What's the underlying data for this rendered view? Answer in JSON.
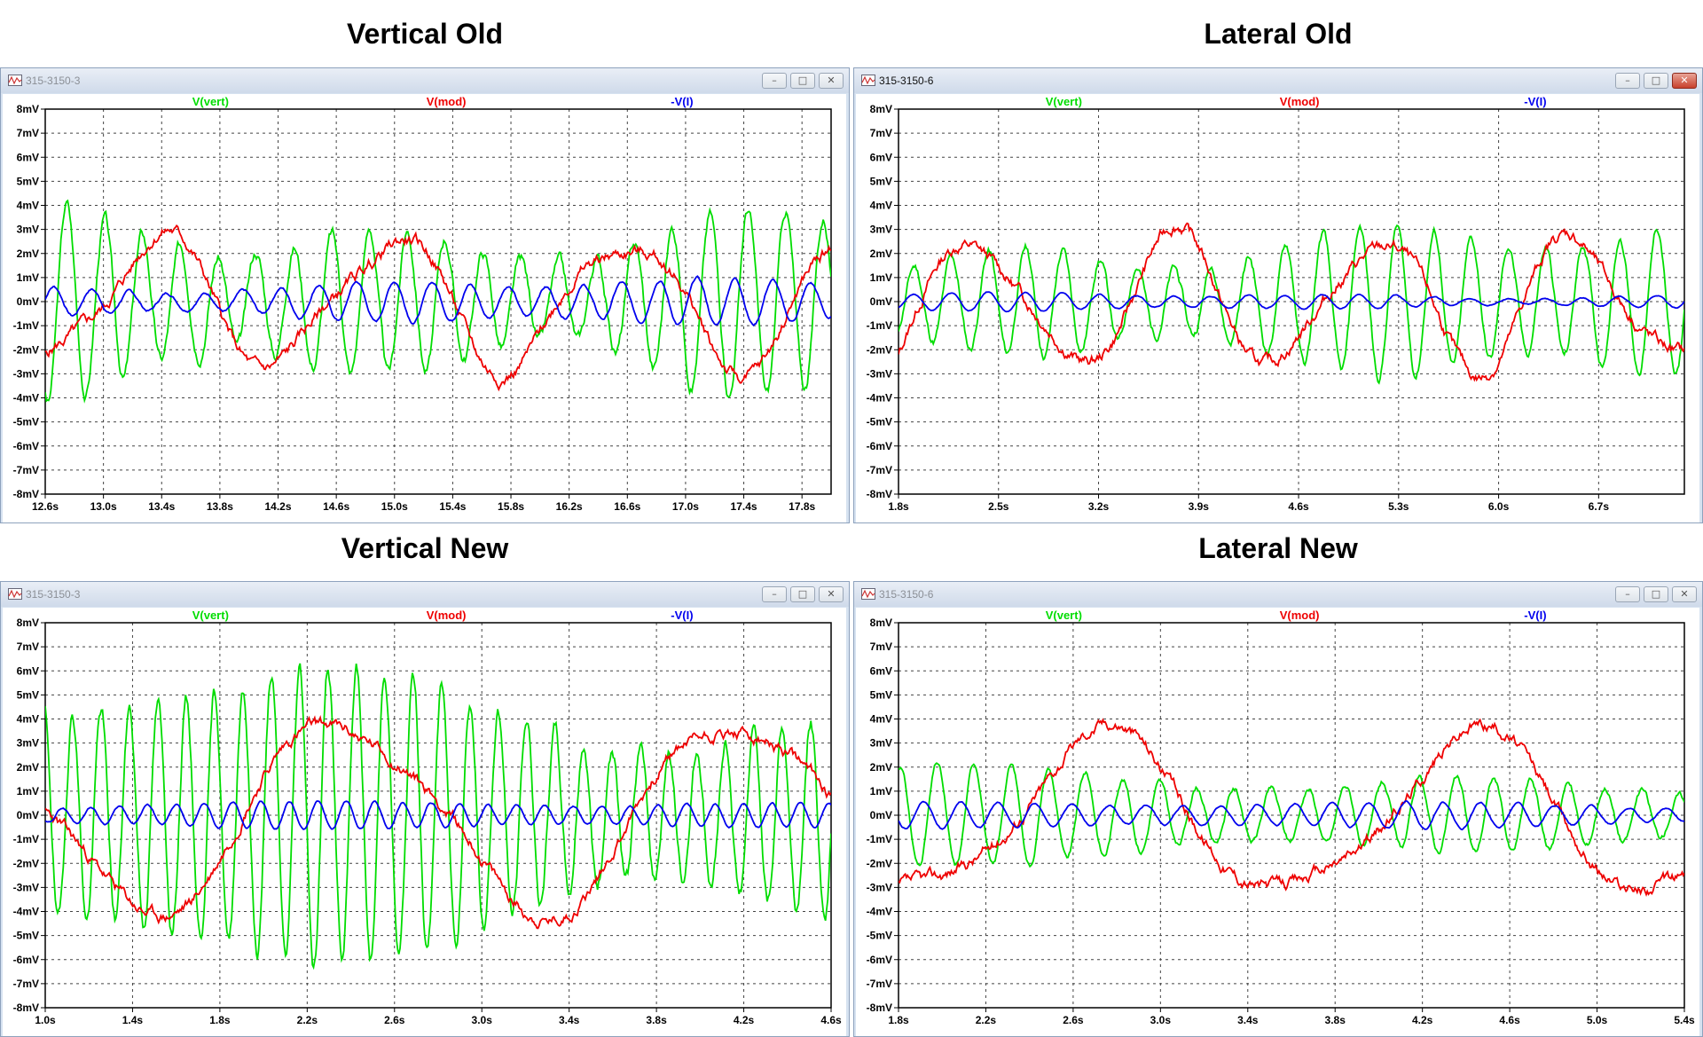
{
  "panels": [
    {
      "heading": "Vertical Old",
      "window_title": "315-3150-3",
      "active": false,
      "chart_data": {
        "type": "line",
        "x_ticks": [
          "12.6s",
          "13.0s",
          "13.4s",
          "13.8s",
          "14.2s",
          "14.6s",
          "15.0s",
          "15.4s",
          "15.8s",
          "16.2s",
          "16.6s",
          "17.0s",
          "17.4s",
          "17.8s"
        ],
        "xlim": [
          12.6,
          18.0
        ],
        "ylim": [
          -8,
          8
        ],
        "y_ticks": [
          "8mV",
          "7mV",
          "6mV",
          "5mV",
          "4mV",
          "3mV",
          "2mV",
          "1mV",
          "0mV",
          "-1mV",
          "-2mV",
          "-3mV",
          "-4mV",
          "-5mV",
          "-6mV",
          "-7mV",
          "-8mV"
        ],
        "grid": true,
        "series": [
          {
            "name": "V(vert)",
            "color": "#00dd00",
            "kind": "osc",
            "amp": 4.6,
            "period": 0.26,
            "drift": 0,
            "seed": 3
          },
          {
            "name": "V(mod)",
            "color": "#ee0000",
            "kind": "slow",
            "amp": 2.6,
            "period": 1.6,
            "drift": 0,
            "seed": 5
          },
          {
            "name": "-V(I)",
            "color": "#0000ee",
            "kind": "osc",
            "amp": 1.0,
            "period": 0.26,
            "drift": 0,
            "seed": 7
          }
        ]
      }
    },
    {
      "heading": "Lateral Old",
      "window_title": "315-3150-6",
      "active": true,
      "chart_data": {
        "type": "line",
        "x_ticks": [
          "1.8s",
          "2.5s",
          "3.2s",
          "3.9s",
          "4.6s",
          "5.3s",
          "6.0s",
          "6.7s"
        ],
        "xlim": [
          1.8,
          7.3
        ],
        "ylim": [
          -8,
          8
        ],
        "y_ticks": [
          "8mV",
          "7mV",
          "6mV",
          "5mV",
          "4mV",
          "3mV",
          "2mV",
          "1mV",
          "0mV",
          "-1mV",
          "-2mV",
          "-3mV",
          "-4mV",
          "-5mV",
          "-6mV",
          "-7mV",
          "-8mV"
        ],
        "grid": true,
        "series": [
          {
            "name": "V(vert)",
            "color": "#00dd00",
            "kind": "osc",
            "amp": 3.4,
            "period": 0.26,
            "drift": 0,
            "seed": 11
          },
          {
            "name": "V(mod)",
            "color": "#ee0000",
            "kind": "slow",
            "amp": 2.6,
            "period": 1.4,
            "drift": 0,
            "seed": 13
          },
          {
            "name": "-V(I)",
            "color": "#0000ee",
            "kind": "osc",
            "amp": 0.4,
            "period": 0.26,
            "drift": 0,
            "seed": 17
          }
        ]
      }
    },
    {
      "heading": "Vertical New",
      "window_title": "315-3150-3",
      "active": false,
      "chart_data": {
        "type": "line",
        "x_ticks": [
          "1.0s",
          "1.4s",
          "1.8s",
          "2.2s",
          "2.6s",
          "3.0s",
          "3.4s",
          "3.8s",
          "4.2s",
          "4.6s"
        ],
        "xlim": [
          1.0,
          4.6
        ],
        "ylim": [
          -8,
          8
        ],
        "y_ticks": [
          "8mV",
          "7mV",
          "6mV",
          "5mV",
          "4mV",
          "3mV",
          "2mV",
          "1mV",
          "0mV",
          "-1mV",
          "-2mV",
          "-3mV",
          "-4mV",
          "-5mV",
          "-6mV",
          "-7mV",
          "-8mV"
        ],
        "grid": true,
        "series": [
          {
            "name": "V(vert)",
            "color": "#00dd00",
            "kind": "osc",
            "amp": 6.6,
            "period": 0.13,
            "drift": 0,
            "seed": 19
          },
          {
            "name": "V(mod)",
            "color": "#ee0000",
            "kind": "slow",
            "amp": 3.9,
            "period": 1.8,
            "drift": 0,
            "seed": 23
          },
          {
            "name": "-V(I)",
            "color": "#0000ee",
            "kind": "osc",
            "amp": 0.6,
            "period": 0.13,
            "drift": 0,
            "seed": 29
          }
        ]
      }
    },
    {
      "heading": "Lateral New",
      "window_title": "315-3150-6",
      "active": false,
      "chart_data": {
        "type": "line",
        "x_ticks": [
          "1.8s",
          "2.2s",
          "2.6s",
          "3.0s",
          "3.4s",
          "3.8s",
          "4.2s",
          "4.6s",
          "5.0s",
          "5.4s"
        ],
        "xlim": [
          1.8,
          5.4
        ],
        "ylim": [
          -8,
          8
        ],
        "y_ticks": [
          "8mV",
          "7mV",
          "6mV",
          "5mV",
          "4mV",
          "3mV",
          "2mV",
          "1mV",
          "0mV",
          "-1mV",
          "-2mV",
          "-3mV",
          "-4mV",
          "-5mV",
          "-6mV",
          "-7mV",
          "-8mV"
        ],
        "grid": true,
        "series": [
          {
            "name": "V(vert)",
            "color": "#00dd00",
            "kind": "osc",
            "amp": 2.2,
            "period": 0.17,
            "drift": 0,
            "seed": 31
          },
          {
            "name": "V(mod)",
            "color": "#ee0000",
            "kind": "slow",
            "amp": 3.3,
            "period": 1.7,
            "drift": 0,
            "seed": 37
          },
          {
            "name": "-V(I)",
            "color": "#0000ee",
            "kind": "osc",
            "amp": 0.6,
            "period": 0.17,
            "drift": 0,
            "seed": 41
          }
        ]
      }
    }
  ]
}
